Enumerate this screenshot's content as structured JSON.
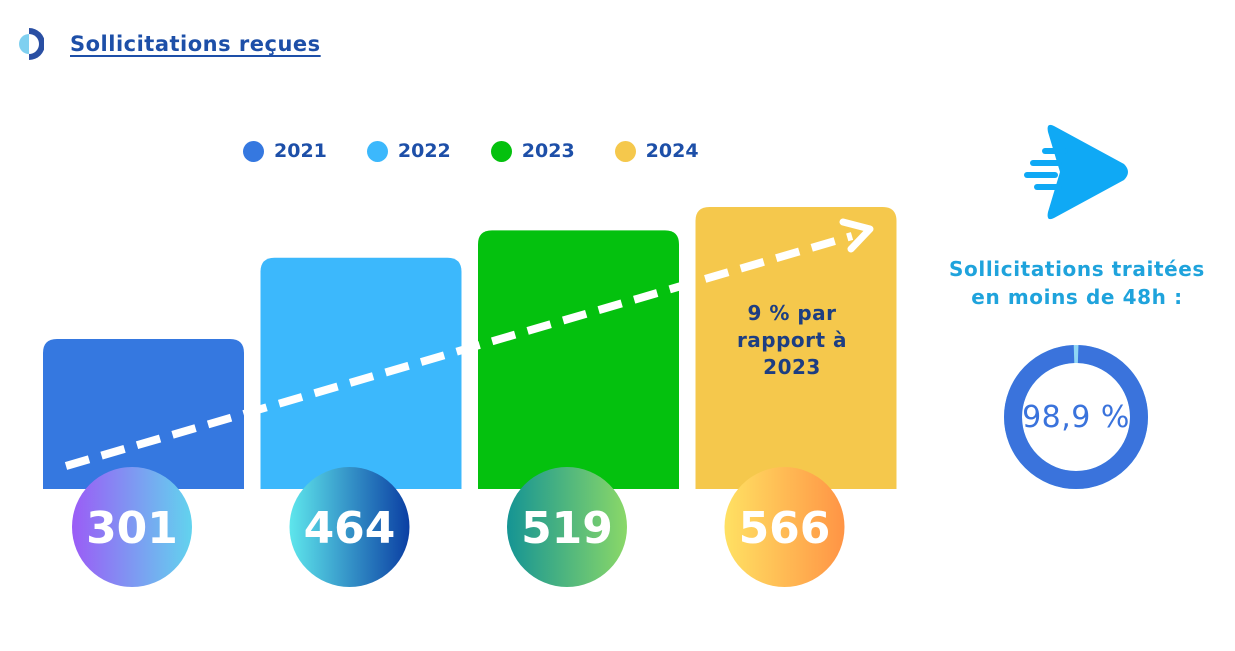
{
  "header": {
    "title": "Sollicitations reçues",
    "logo_icon": "half-circle-logo-icon"
  },
  "legend": [
    {
      "label": "2021",
      "color": "#3578e0"
    },
    {
      "label": "2022",
      "color": "#3cb8fc"
    },
    {
      "label": "2023",
      "color": "#04c10e"
    },
    {
      "label": "2024",
      "color": "#f5c84c"
    }
  ],
  "chart_data": {
    "type": "bar",
    "categories": [
      "2021",
      "2022",
      "2023",
      "2024"
    ],
    "values": [
      301,
      464,
      519,
      566
    ],
    "colors": [
      "#3578e0",
      "#3cb8fc",
      "#04c10e",
      "#f5c84c"
    ],
    "badge_gradients": [
      [
        "#9b5cf6",
        "#62d3ee"
      ],
      [
        "#5ee6ec",
        "#0b3fa3"
      ],
      [
        "#159494",
        "#8ad868"
      ],
      [
        "#ffe163",
        "#ff9445"
      ]
    ],
    "trend_arrow": true,
    "annotation": "9 % par rapport à 2023"
  },
  "side_panel": {
    "icon": "fast-forward-play-icon",
    "text_line1": "Sollicitations traitées",
    "text_line2": "en moins de 48h :",
    "donut_value_label": "98,9 %",
    "donut_value": 98.9,
    "donut_color": "#3a73dc"
  }
}
